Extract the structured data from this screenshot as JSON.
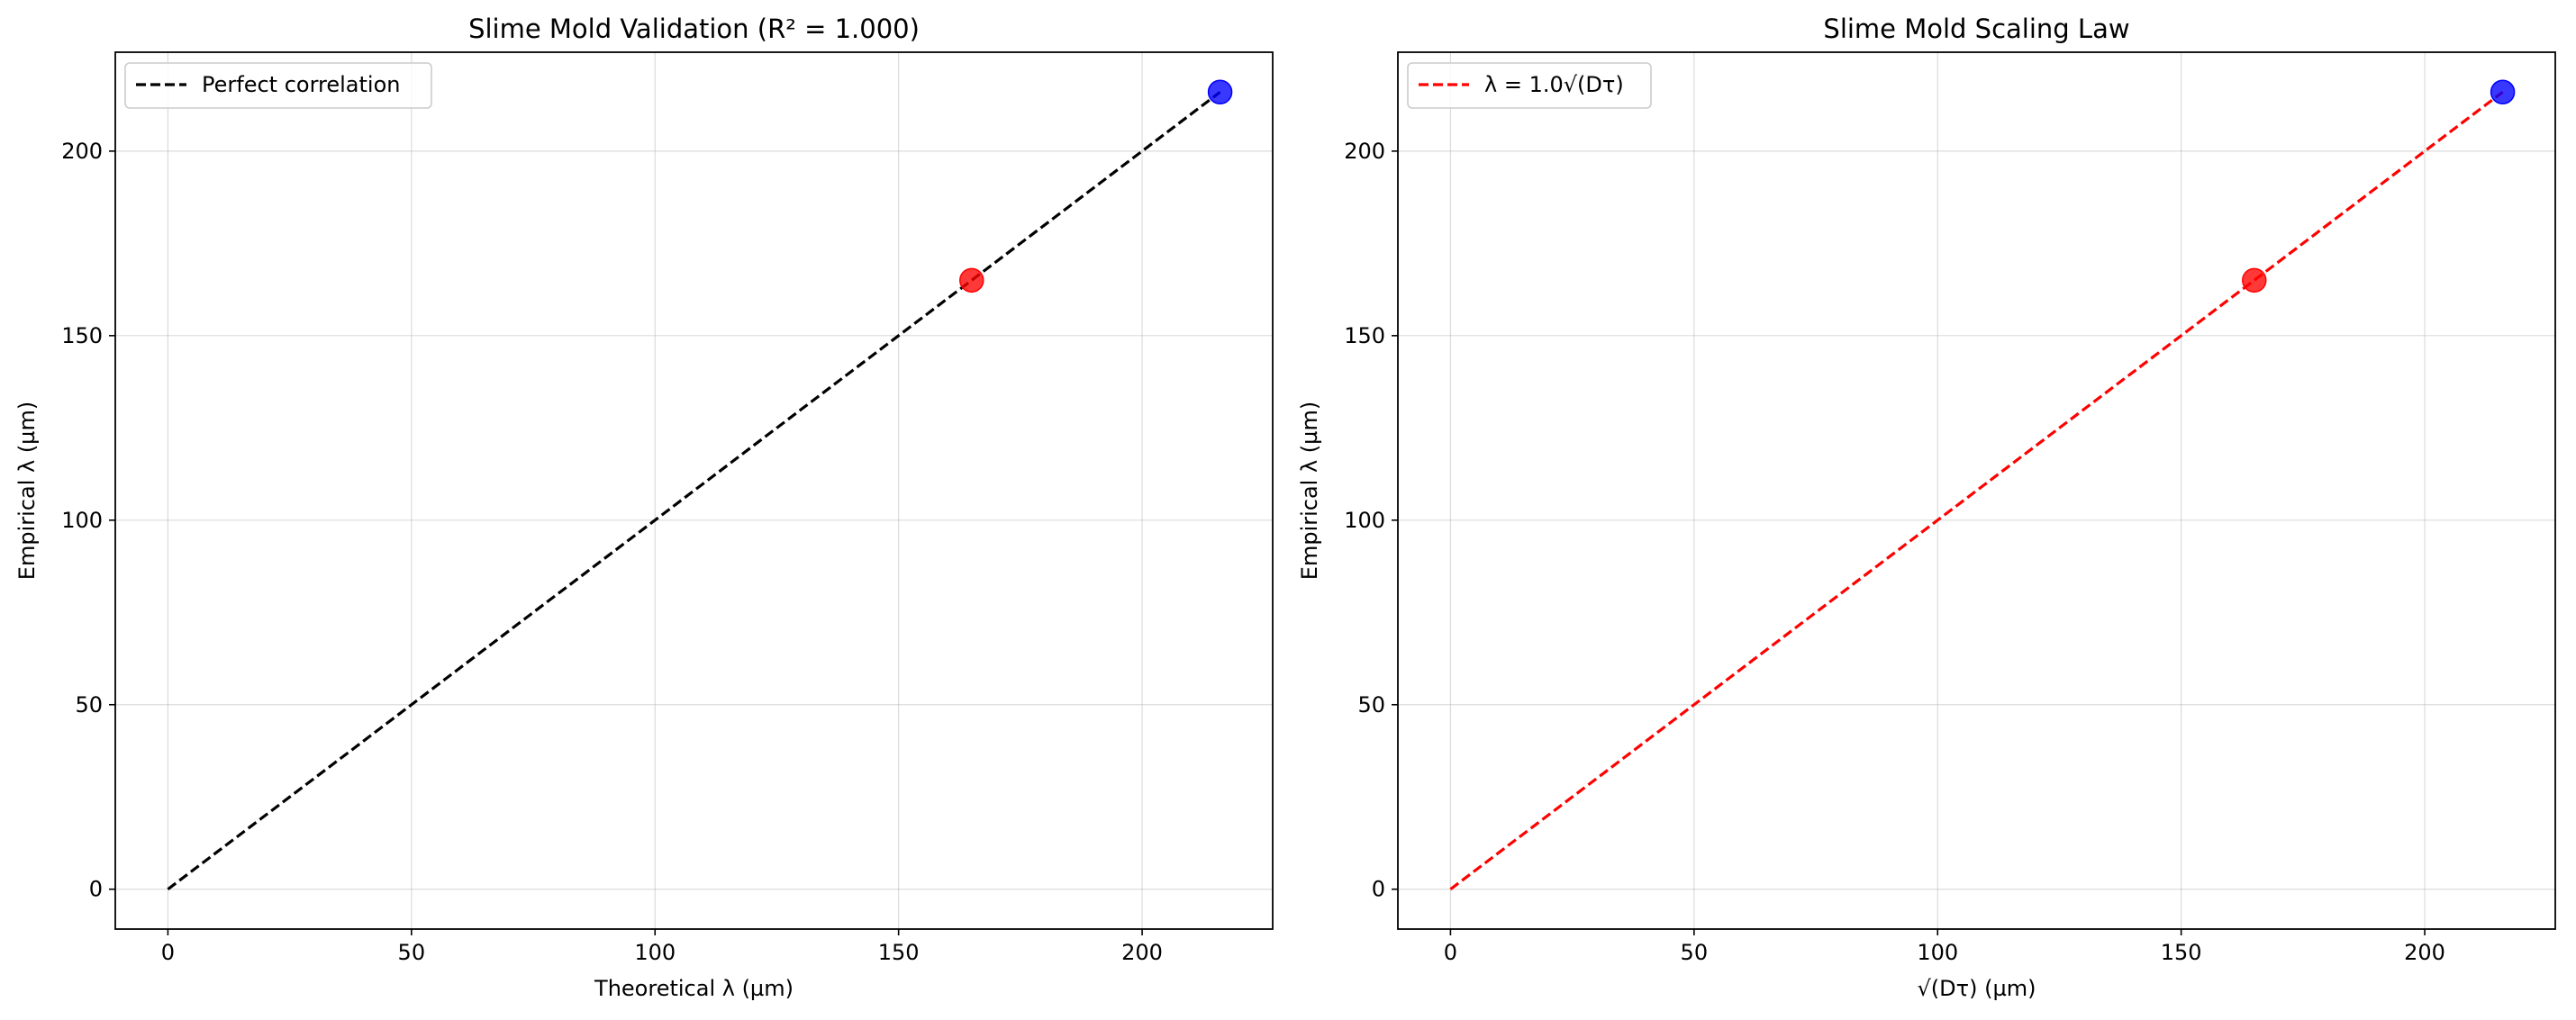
{
  "chart_data": [
    {
      "type": "scatter",
      "title": "Slime Mold Validation (R² = 1.000)",
      "xlabel": "Theoretical λ (µm)",
      "ylabel": "Empirical λ (µm)",
      "xlim": [
        -10.8,
        226.8
      ],
      "ylim": [
        -10.8,
        226.8
      ],
      "xticks": [
        0,
        50,
        100,
        150,
        200
      ],
      "yticks": [
        0,
        50,
        100,
        150,
        200
      ],
      "grid": true,
      "legend_position": "top-left",
      "line": {
        "name": "Perfect correlation",
        "x": [
          0,
          216
        ],
        "y": [
          0,
          216
        ],
        "color": "#000000",
        "style": "dashed"
      },
      "points": [
        {
          "x": 165,
          "y": 165,
          "color": "#ff0000"
        },
        {
          "x": 216,
          "y": 216,
          "color": "#0000ff"
        }
      ]
    },
    {
      "type": "scatter",
      "title": "Slime Mold Scaling Law",
      "xlabel": "√(Dτ) (µm)",
      "ylabel": "Empirical λ (µm)",
      "xlim": [
        -10.8,
        226.8
      ],
      "ylim": [
        -10.8,
        226.8
      ],
      "xticks": [
        0,
        50,
        100,
        150,
        200
      ],
      "yticks": [
        0,
        50,
        100,
        150,
        200
      ],
      "grid": true,
      "legend_position": "top-left",
      "line": {
        "name": "λ = 1.0√(Dτ)",
        "x": [
          0,
          216
        ],
        "y": [
          0,
          216
        ],
        "color": "#ff0000",
        "style": "dashed"
      },
      "points": [
        {
          "x": 165,
          "y": 165,
          "color": "#ff0000"
        },
        {
          "x": 216,
          "y": 216,
          "color": "#0000ff"
        }
      ]
    }
  ]
}
